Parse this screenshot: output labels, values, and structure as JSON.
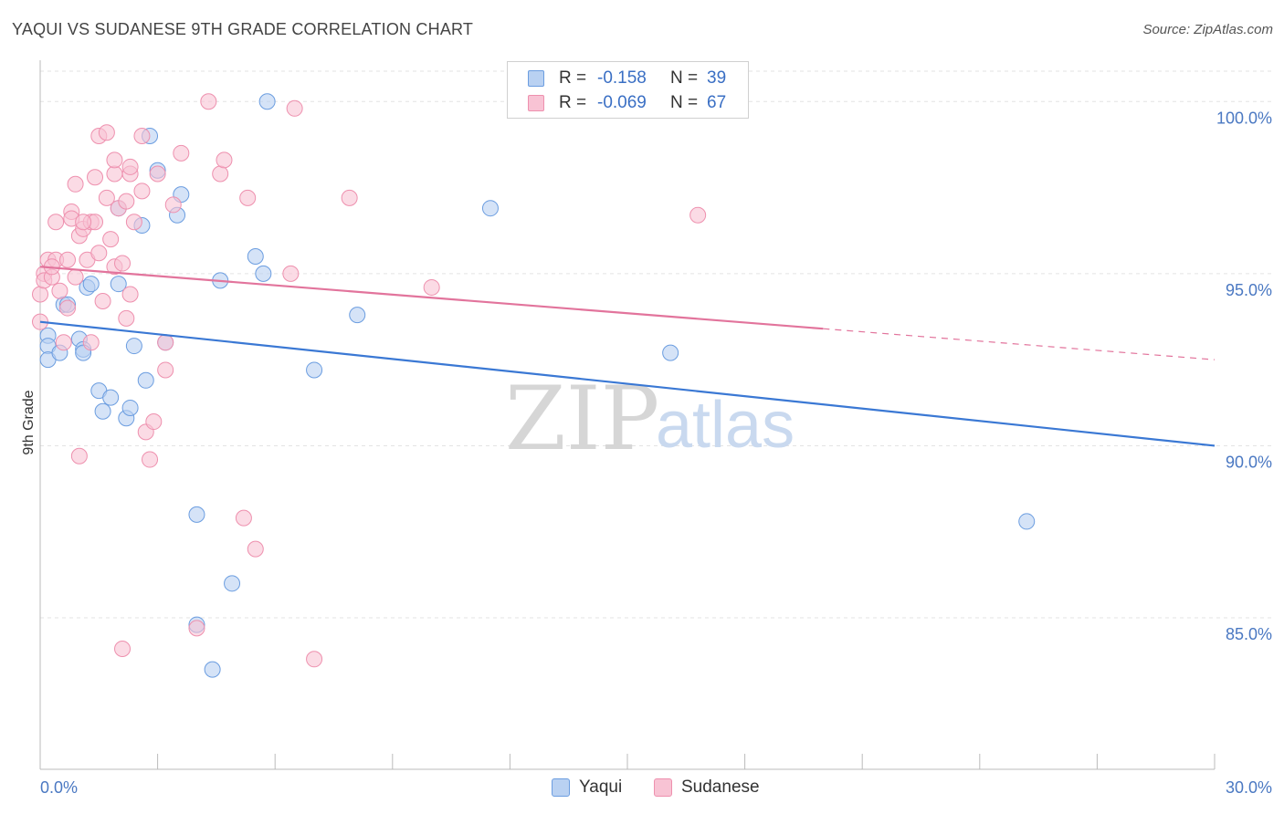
{
  "header": {
    "title": "YAQUI VS SUDANESE 9TH GRADE CORRELATION CHART",
    "source": "Source: ZipAtlas.com"
  },
  "watermark": {
    "zip": "ZIP",
    "atlas": "atlas"
  },
  "colors": {
    "yaqui_fill": "#b9d1f2",
    "yaqui_stroke": "#6b9de0",
    "yaqui_line": "#3a78d4",
    "sudanese_fill": "#f8c3d4",
    "sudanese_stroke": "#ee90ae",
    "sudanese_line": "#e2749c"
  },
  "legend_top": [
    {
      "r_label": "R =",
      "r_value": "-0.158",
      "n_label": "N =",
      "n_value": "39"
    },
    {
      "r_label": "R =",
      "r_value": "-0.069",
      "n_label": "N =",
      "n_value": "67"
    }
  ],
  "legend_bottom": [
    {
      "label": "Yaqui"
    },
    {
      "label": "Sudanese"
    }
  ],
  "chart_data": {
    "type": "scatter",
    "ylabel": "9th Grade",
    "xlim": [
      0,
      30
    ],
    "ylim": [
      80.6,
      101.2
    ],
    "x_tick_labels": [
      "0.0%",
      "30.0%"
    ],
    "y_ticks": [
      {
        "value": 85,
        "label": "85.0%"
      },
      {
        "value": 90,
        "label": "90.0%"
      },
      {
        "value": 95,
        "label": "95.0%"
      },
      {
        "value": 100,
        "label": "100.0%"
      }
    ],
    "grid": true,
    "series": [
      {
        "name": "Yaqui",
        "trend": {
          "x": [
            0,
            30
          ],
          "y": [
            93.6,
            90.0
          ],
          "dashed_from": null
        },
        "points": [
          [
            0.2,
            93.2
          ],
          [
            0.2,
            92.9
          ],
          [
            0.2,
            92.5
          ],
          [
            0.5,
            92.7
          ],
          [
            0.6,
            94.1
          ],
          [
            0.7,
            94.1
          ],
          [
            1.0,
            93.1
          ],
          [
            1.1,
            92.8
          ],
          [
            1.1,
            92.7
          ],
          [
            1.2,
            94.6
          ],
          [
            1.3,
            94.7
          ],
          [
            1.5,
            91.6
          ],
          [
            1.6,
            91.0
          ],
          [
            1.8,
            91.4
          ],
          [
            2.0,
            96.9
          ],
          [
            2.0,
            94.7
          ],
          [
            2.2,
            90.8
          ],
          [
            2.3,
            91.1
          ],
          [
            2.4,
            92.9
          ],
          [
            2.6,
            96.4
          ],
          [
            2.7,
            91.9
          ],
          [
            2.8,
            99.0
          ],
          [
            3.0,
            98.0
          ],
          [
            3.2,
            93.0
          ],
          [
            3.5,
            96.7
          ],
          [
            3.6,
            97.3
          ],
          [
            4.0,
            88.0
          ],
          [
            4.0,
            84.8
          ],
          [
            4.4,
            83.5
          ],
          [
            4.6,
            94.8
          ],
          [
            4.9,
            86.0
          ],
          [
            5.5,
            95.5
          ],
          [
            5.7,
            95.0
          ],
          [
            5.8,
            100.0
          ],
          [
            7.0,
            92.2
          ],
          [
            8.1,
            93.8
          ],
          [
            11.5,
            96.9
          ],
          [
            16.1,
            92.7
          ],
          [
            25.2,
            87.8
          ]
        ]
      },
      {
        "name": "Sudanese",
        "trend": {
          "x": [
            0,
            30
          ],
          "y": [
            95.2,
            92.5
          ],
          "dashed_from": 20.0
        },
        "points": [
          [
            0.0,
            94.4
          ],
          [
            0.0,
            93.6
          ],
          [
            0.1,
            95.0
          ],
          [
            0.1,
            94.8
          ],
          [
            0.2,
            95.4
          ],
          [
            0.3,
            94.9
          ],
          [
            0.4,
            95.4
          ],
          [
            0.4,
            96.5
          ],
          [
            0.5,
            94.5
          ],
          [
            0.6,
            93.0
          ],
          [
            0.7,
            95.4
          ],
          [
            0.7,
            94.0
          ],
          [
            0.8,
            96.8
          ],
          [
            0.8,
            96.6
          ],
          [
            0.9,
            97.6
          ],
          [
            0.9,
            94.9
          ],
          [
            1.0,
            89.7
          ],
          [
            1.0,
            96.1
          ],
          [
            1.1,
            96.3
          ],
          [
            1.2,
            95.4
          ],
          [
            1.3,
            93.0
          ],
          [
            1.3,
            96.5
          ],
          [
            1.4,
            96.5
          ],
          [
            1.4,
            97.8
          ],
          [
            1.5,
            95.6
          ],
          [
            1.5,
            99.0
          ],
          [
            1.6,
            94.2
          ],
          [
            1.7,
            99.1
          ],
          [
            1.7,
            97.2
          ],
          [
            1.8,
            96.0
          ],
          [
            1.9,
            95.2
          ],
          [
            1.9,
            97.9
          ],
          [
            1.9,
            98.3
          ],
          [
            2.0,
            96.9
          ],
          [
            2.1,
            95.3
          ],
          [
            2.1,
            84.1
          ],
          [
            2.2,
            93.7
          ],
          [
            2.2,
            97.1
          ],
          [
            2.3,
            94.4
          ],
          [
            2.3,
            97.9
          ],
          [
            2.4,
            96.5
          ],
          [
            2.6,
            99.0
          ],
          [
            2.6,
            97.4
          ],
          [
            2.7,
            90.4
          ],
          [
            2.8,
            89.6
          ],
          [
            2.9,
            90.7
          ],
          [
            3.0,
            97.9
          ],
          [
            3.2,
            93.0
          ],
          [
            3.2,
            92.2
          ],
          [
            3.4,
            97.0
          ],
          [
            3.6,
            98.5
          ],
          [
            4.0,
            84.7
          ],
          [
            4.3,
            100.0
          ],
          [
            4.6,
            97.9
          ],
          [
            4.7,
            98.3
          ],
          [
            5.2,
            87.9
          ],
          [
            5.3,
            97.2
          ],
          [
            5.5,
            87.0
          ],
          [
            6.5,
            99.8
          ],
          [
            6.4,
            95.0
          ],
          [
            7.0,
            83.8
          ],
          [
            7.9,
            97.2
          ],
          [
            10.0,
            94.6
          ],
          [
            16.8,
            96.7
          ],
          [
            1.1,
            96.5
          ],
          [
            0.3,
            95.2
          ],
          [
            2.3,
            98.1
          ]
        ]
      }
    ]
  }
}
